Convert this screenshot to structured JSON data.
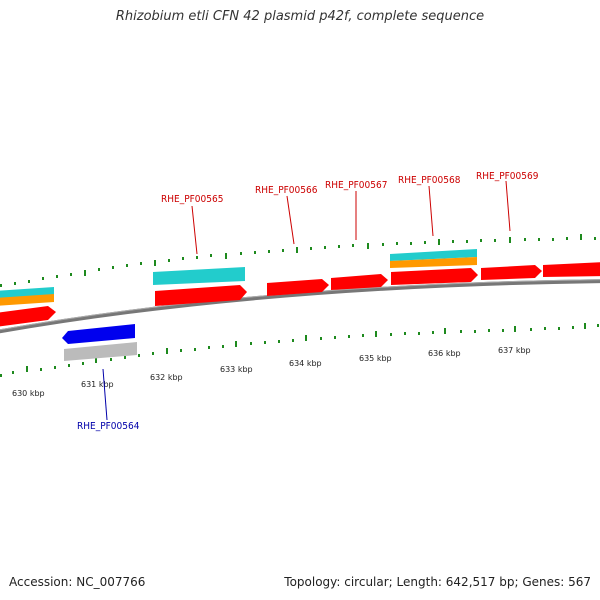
{
  "title": "Rhizobium etli CFN 42 plasmid p42f, complete sequence",
  "footer": {
    "accession": "Accession: NC_007766",
    "summary": "Topology: circular; Length: 642,517 bp; Genes: 567"
  },
  "colors": {
    "forward_gene": "#ff0000",
    "reverse_gene": "#0000ee",
    "cds_cyan": "#22cccc",
    "cds_orange": "#ff9900",
    "rna_gray": "#bbbbbb",
    "backbone": "#777777",
    "tick": "#1e8a1e",
    "label_forward": "#cc0000",
    "label_reverse": "#0000aa"
  },
  "scale": {
    "unit": "kbp",
    "tick_labels": [
      "630 kbp",
      "631 kbp",
      "632 kbp",
      "633 kbp",
      "634 kbp",
      "635 kbp",
      "636 kbp",
      "637 kbp"
    ]
  },
  "gene_labels": [
    {
      "name": "RHE_PF00565",
      "strand": "forward"
    },
    {
      "name": "RHE_PF00566",
      "strand": "forward"
    },
    {
      "name": "RHE_PF00567",
      "strand": "forward"
    },
    {
      "name": "RHE_PF00568",
      "strand": "forward"
    },
    {
      "name": "RHE_PF00569",
      "strand": "forward"
    },
    {
      "name": "RHE_PF00564",
      "strand": "reverse"
    }
  ]
}
